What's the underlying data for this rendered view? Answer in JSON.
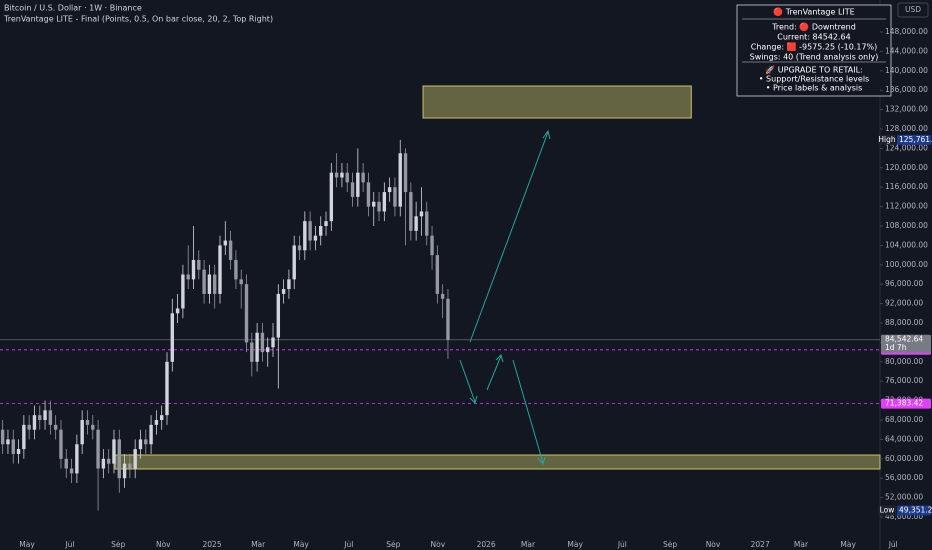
{
  "chart_data": {
    "type": "candlestick",
    "title": "Bitcoin / U.S. Dollar · 1W · Binance",
    "subtitle": "TrenVantage LITE - Final (Points, 0.5, On bar close, 20, 2, Top Right)",
    "currency": "USD",
    "up_color": "#d1d4dc",
    "down_color": "#9598a1",
    "x": [
      0,
      1,
      2,
      3,
      4,
      5,
      6,
      7,
      8,
      9,
      10,
      11,
      12,
      13,
      14,
      15,
      16,
      17,
      18,
      19,
      20,
      21,
      22,
      23,
      24,
      25,
      26,
      27,
      28,
      29,
      30,
      31,
      32,
      33,
      34,
      35,
      36,
      37,
      38,
      39,
      40,
      41,
      42,
      43,
      44,
      45,
      46,
      47,
      48,
      49,
      50,
      51,
      52,
      53,
      54,
      55,
      56,
      57,
      58,
      59,
      60,
      61,
      62,
      63,
      64,
      65,
      66,
      67,
      68,
      69,
      70,
      71,
      72,
      73,
      74,
      75,
      76,
      77,
      78,
      79,
      80,
      81,
      82,
      83,
      84
    ],
    "open": [
      66000,
      63000,
      64000,
      61000,
      62000,
      67000,
      66000,
      69000,
      68000,
      70000,
      67000,
      66000,
      60000,
      58000,
      57000,
      63000,
      68000,
      67000,
      66000,
      58000,
      60000,
      59000,
      64000,
      56000,
      59000,
      58000,
      62000,
      64000,
      63000,
      67000,
      68000,
      69000,
      80000,
      90000,
      91000,
      98000,
      97000,
      101000,
      99000,
      94000,
      98000,
      94000,
      104000,
      105000,
      101000,
      97000,
      96000,
      84000,
      80000,
      86000,
      82000,
      83000,
      85000,
      94000,
      95000,
      97000,
      104000,
      103000,
      109000,
      105000,
      106000,
      108000,
      109000,
      119000,
      118000,
      119000,
      117000,
      114000,
      119000,
      117000,
      112000,
      113000,
      111000,
      115000,
      116000,
      112000,
      123000,
      115000,
      107000,
      110000,
      111000,
      106000,
      102000,
      94000,
      93000
    ],
    "high": [
      68000,
      66000,
      66000,
      64000,
      69000,
      69000,
      71000,
      71000,
      72000,
      72000,
      69000,
      68000,
      62000,
      60000,
      65000,
      70000,
      70000,
      69000,
      68000,
      62000,
      62000,
      66000,
      66000,
      61000,
      61000,
      64000,
      66000,
      66000,
      69000,
      70000,
      71000,
      82000,
      93000,
      94000,
      100000,
      104000,
      108000,
      103000,
      101000,
      100000,
      100000,
      106000,
      109000,
      107000,
      103000,
      99000,
      98000,
      86000,
      88000,
      88000,
      85000,
      88000,
      96000,
      97000,
      99000,
      106000,
      106000,
      111000,
      111000,
      108000,
      110000,
      111000,
      121000,
      123000,
      121000,
      121000,
      119000,
      124000,
      121000,
      119000,
      115000,
      115000,
      117000,
      118000,
      118000,
      125761.31,
      124000,
      117000,
      113000,
      116000,
      113000,
      108000,
      104000,
      96000,
      95000
    ],
    "low": [
      61000,
      61000,
      59000,
      59000,
      60000,
      64000,
      64000,
      66000,
      66000,
      65000,
      64000,
      58000,
      56000,
      55000,
      55000,
      61000,
      65000,
      64000,
      49351.27,
      56000,
      57000,
      57000,
      53000,
      54000,
      56000,
      56000,
      60000,
      61000,
      61000,
      65000,
      66000,
      67000,
      78000,
      88000,
      89000,
      95000,
      95000,
      97000,
      92000,
      92000,
      91000,
      92000,
      102000,
      99000,
      95000,
      91000,
      82000,
      77000,
      78000,
      80000,
      79000,
      81000,
      74500,
      92000,
      93000,
      95000,
      101000,
      101000,
      103000,
      103000,
      104000,
      106000,
      107000,
      116000,
      116000,
      115000,
      112000,
      112000,
      115000,
      110000,
      108000,
      109000,
      109000,
      113000,
      110000,
      110000,
      104000,
      105000,
      105000,
      106000,
      104000,
      99000,
      92000,
      89000,
      80600
    ],
    "close": [
      63000,
      64000,
      61000,
      62000,
      67000,
      66000,
      69000,
      68000,
      70000,
      67000,
      66000,
      60000,
      58000,
      57000,
      63000,
      68000,
      67000,
      66000,
      58000,
      60000,
      59000,
      64000,
      56000,
      59000,
      58000,
      62000,
      64000,
      63000,
      67000,
      68000,
      69000,
      80000,
      90000,
      91000,
      98000,
      97000,
      101000,
      99000,
      94000,
      98000,
      94000,
      104000,
      105000,
      101000,
      97000,
      96000,
      84000,
      80000,
      86000,
      82000,
      83000,
      85000,
      94000,
      95000,
      97000,
      104000,
      103000,
      109000,
      105000,
      106000,
      108000,
      109000,
      119000,
      118000,
      119000,
      117000,
      114000,
      119000,
      117000,
      112000,
      113000,
      111000,
      115000,
      116000,
      112000,
      123000,
      115000,
      107000,
      110000,
      111000,
      106000,
      102000,
      94000,
      93000,
      84542.64
    ],
    "xlim": [
      -0.5,
      165.5
    ],
    "xticks": [
      {
        "value": 4.6,
        "label": "May"
      },
      {
        "value": 12.7,
        "label": "Jul"
      },
      {
        "value": 21.8,
        "label": "Sep"
      },
      {
        "value": 30.3,
        "label": "Nov"
      },
      {
        "value": 39.5,
        "label": "2025"
      },
      {
        "value": 48.2,
        "label": "Mar"
      },
      {
        "value": 56.3,
        "label": "May"
      },
      {
        "value": 65.3,
        "label": "Jul"
      },
      {
        "value": 73.7,
        "label": "Sep"
      },
      {
        "value": 82.1,
        "label": "Nov"
      },
      {
        "value": 91.2,
        "label": "2026"
      },
      {
        "value": 99.1,
        "label": "Mar"
      },
      {
        "value": 108,
        "label": "May"
      },
      {
        "value": 116.9,
        "label": "Jul"
      },
      {
        "value": 125.9,
        "label": "Sep"
      },
      {
        "value": 134,
        "label": "Nov"
      },
      {
        "value": 142.9,
        "label": "2027"
      },
      {
        "value": 150.6,
        "label": "Mar"
      },
      {
        "value": 159.5,
        "label": "May"
      },
      {
        "value": 168,
        "label": "Jul"
      }
    ],
    "ylim": [
      43260,
      154600
    ],
    "yticks": [
      {
        "value": 48000,
        "label": "48,000.00"
      },
      {
        "value": 52000,
        "label": "52,000.00"
      },
      {
        "value": 56000,
        "label": "56,000.00"
      },
      {
        "value": 60000,
        "label": "60,000.00"
      },
      {
        "value": 64000,
        "label": "64,000.00"
      },
      {
        "value": 68000,
        "label": "68,000.00"
      },
      {
        "value": 72000,
        "label": "72,000.00"
      },
      {
        "value": 76000,
        "label": "76,000.00"
      },
      {
        "value": 80000,
        "label": "80,000.00"
      },
      {
        "value": 84000,
        "label": "84,000.00"
      },
      {
        "value": 88000,
        "label": "88,000.00"
      },
      {
        "value": 92000,
        "label": "92,000.00"
      },
      {
        "value": 96000,
        "label": "96,000.00"
      },
      {
        "value": 100000,
        "label": "100,000.00"
      },
      {
        "value": 104000,
        "label": "104,000.00"
      },
      {
        "value": 108000,
        "label": "108,000.00"
      },
      {
        "value": 112000,
        "label": "112,000.00"
      },
      {
        "value": 116000,
        "label": "116,000.00"
      },
      {
        "value": 120000,
        "label": "120,000.00"
      },
      {
        "value": 124000,
        "label": "124,000.00"
      },
      {
        "value": 128000,
        "label": "128,000.00"
      },
      {
        "value": 132000,
        "label": "132,000.00"
      },
      {
        "value": 136000,
        "label": "136,000.00"
      },
      {
        "value": 140000,
        "label": "140,000.00"
      },
      {
        "value": 144000,
        "label": "144,000.00"
      },
      {
        "value": 148000,
        "label": "148,000.00"
      }
    ],
    "grid": false,
    "zones": [
      {
        "x": [
          79.3,
          129.9
        ],
        "y": [
          130268,
          136866
        ],
        "color": "#c9c46a"
      },
      {
        "x": [
          21.2,
          165.5
        ],
        "y": [
          57897,
          60784
        ],
        "color": "#c9c46a"
      }
    ],
    "last_price": {
      "value": 84542.64,
      "label": "84,542.64",
      "countdown": "1d 7h",
      "color": "#787b86"
    },
    "price_lines": [
      {
        "value": 82476.96,
        "label": "82,476.96",
        "color": "#e040fb"
      },
      {
        "value": 71383.42,
        "label": "71,383.42",
        "color": "#e040fb"
      }
    ],
    "extremes": [
      {
        "name": "High",
        "value": 125761.31,
        "label": "125,761.31"
      },
      {
        "name": "Low",
        "value": 49351.27,
        "label": "49,351.27"
      }
    ],
    "panel": {
      "title": "🔴 TrenVantage LITE",
      "lines": [
        "Trend: 🔴 Downtrend",
        "Current: 84542.64",
        "Change: 🟥 -9575.25 (-10.17%)",
        "Swings: 40 (Trend analysis only)"
      ],
      "upgrade": [
        "🚀 UPGRADE TO RETAIL:",
        "• Support/Resistance levels",
        "• Price labels & analysis"
      ]
    }
  }
}
